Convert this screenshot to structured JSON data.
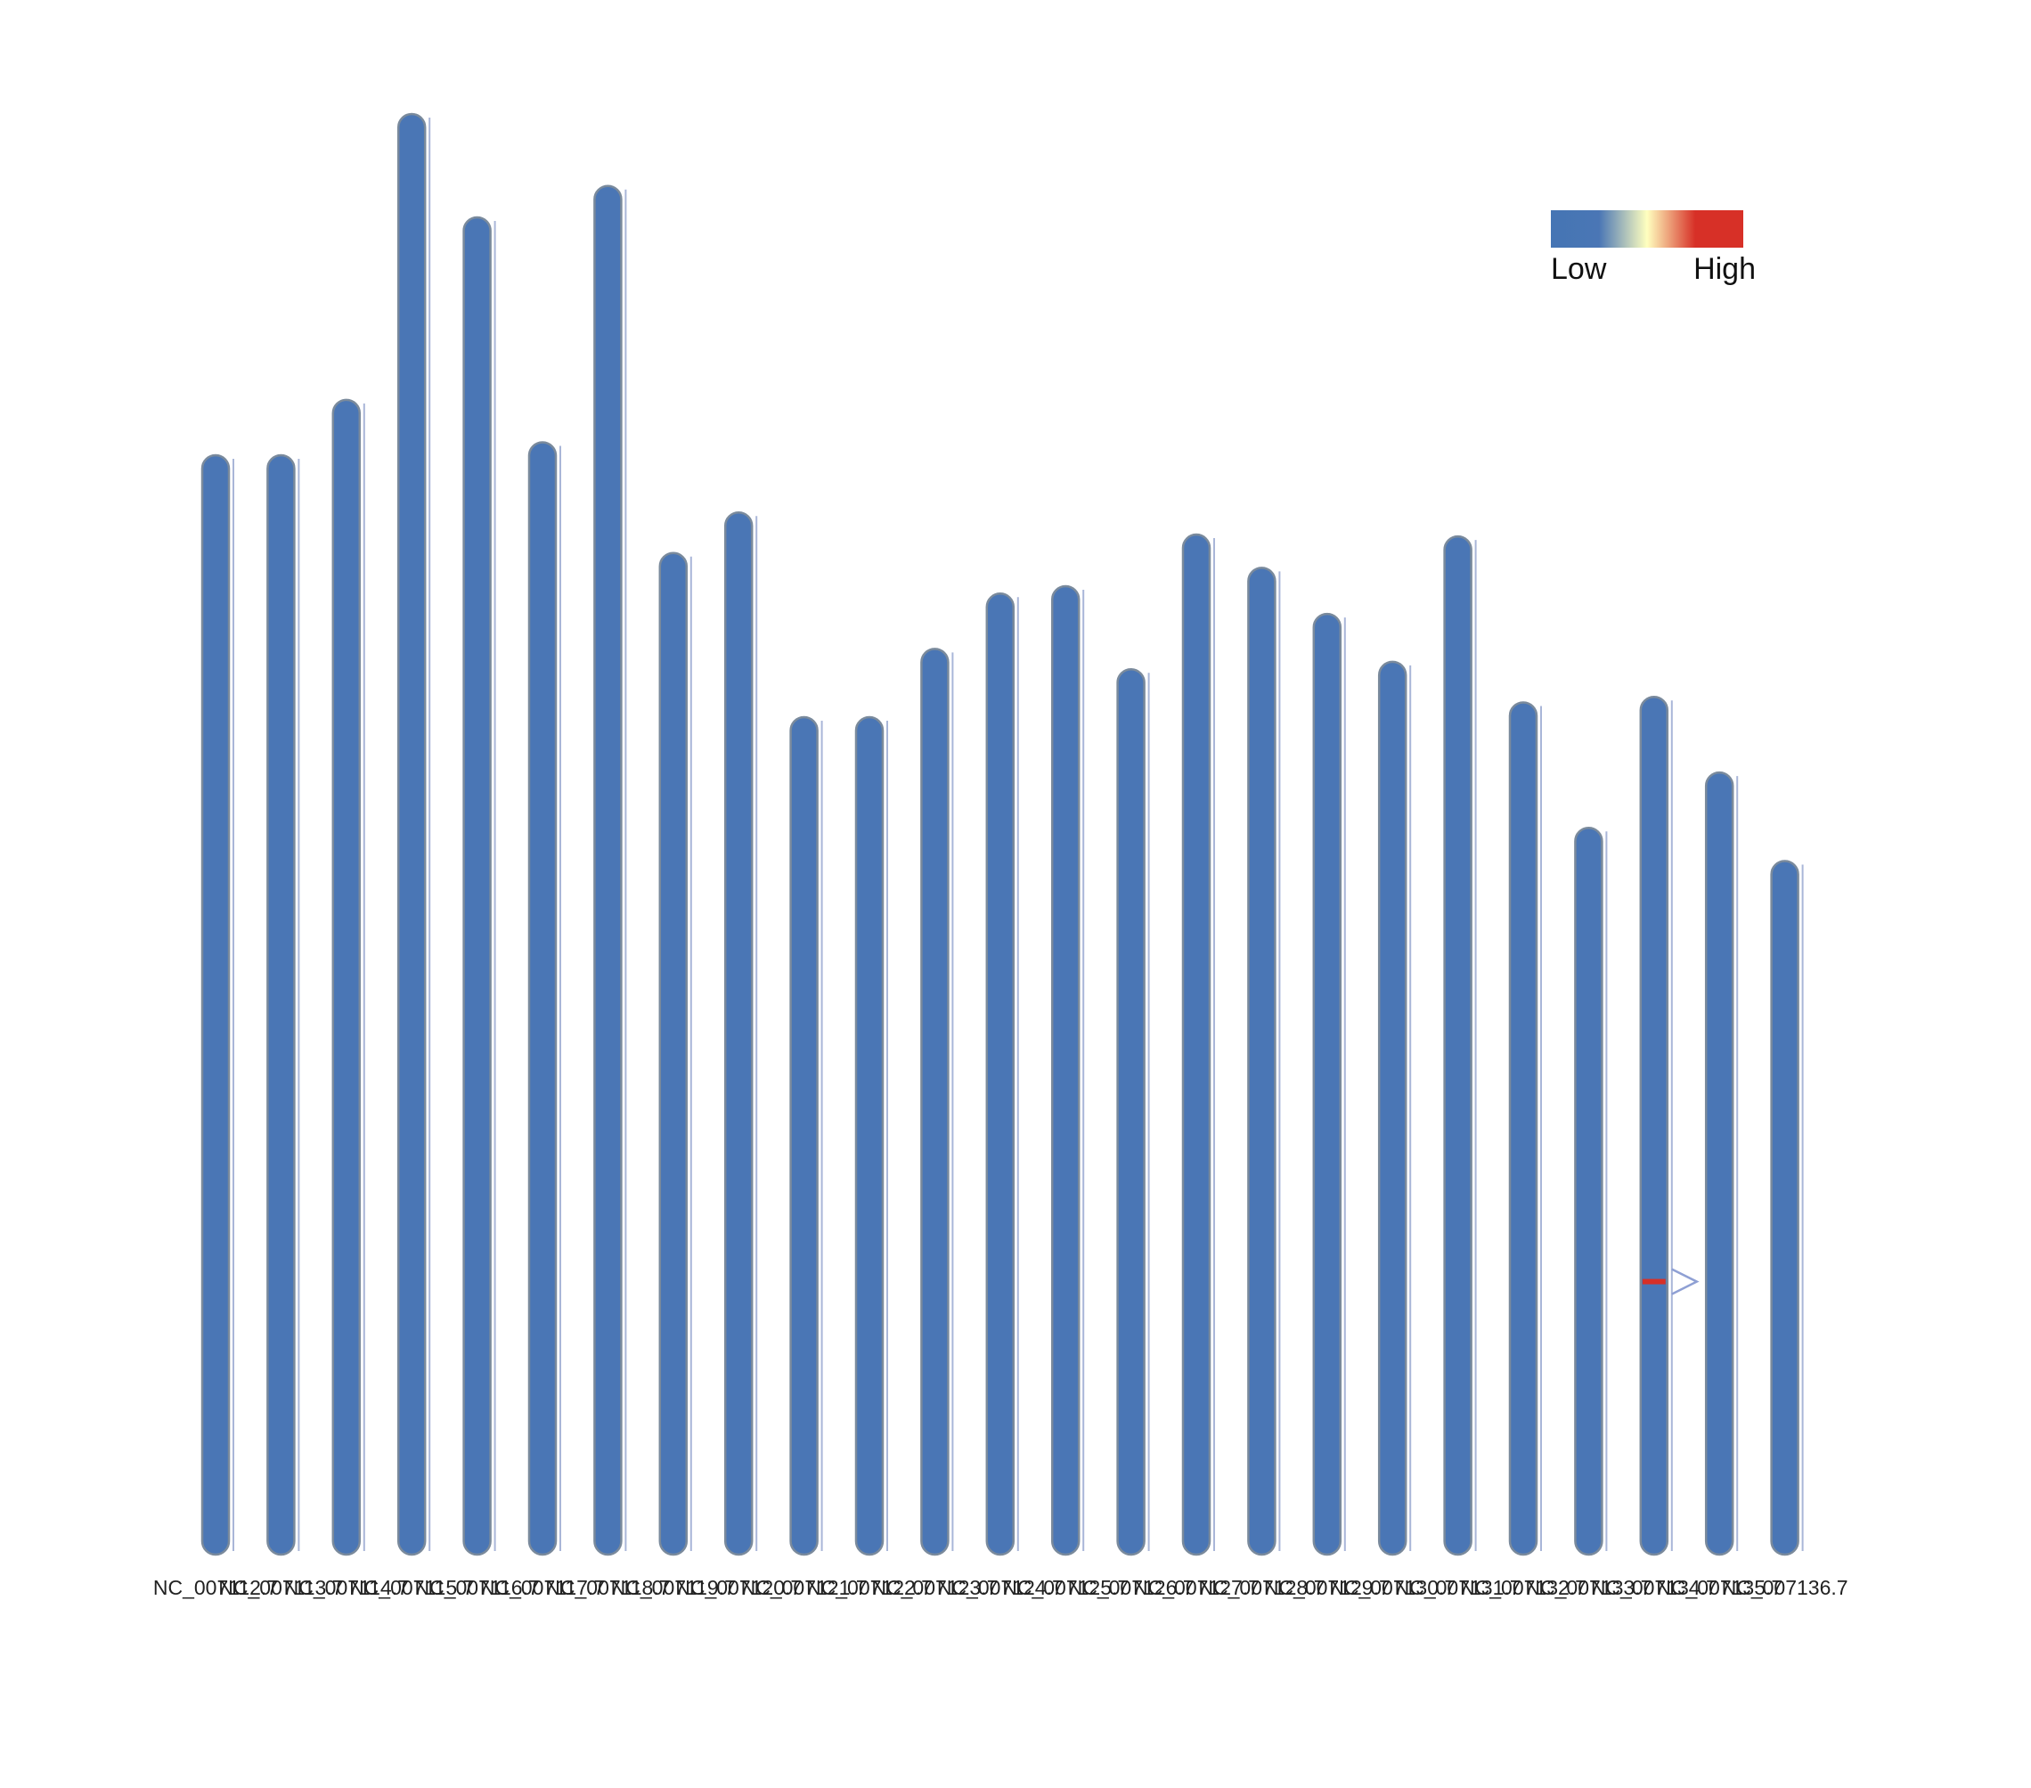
{
  "chart_data": {
    "type": "bar",
    "subtype": "chromosome-ideogram-density",
    "title": "",
    "xlabel": "",
    "ylabel": "",
    "categories": [
      "NC_007112.7",
      "NC_007113.7",
      "NC_007114.7",
      "NC_007115.7",
      "NC_007116.7",
      "NC_007117.7",
      "NC_007118.7",
      "NC_007119.7",
      "NC_007120.7",
      "NC_007121.7",
      "NC_007122.7",
      "NC_007123.7",
      "NC_007124.7",
      "NC_007125.7",
      "NC_007126.7",
      "NC_007127.7",
      "NC_007128.7",
      "NC_007129.7",
      "NC_007130.7",
      "NC_007131.7",
      "NC_007132.7",
      "NC_007133.7",
      "NC_007134.7",
      "NC_007135.7",
      "NC_007136.7"
    ],
    "lengths": [
      59.6,
      59.6,
      62.6,
      78.1,
      72.5,
      60.3,
      74.2,
      54.3,
      56.5,
      45.4,
      45.4,
      49.1,
      52.1,
      52.5,
      48.0,
      55.3,
      53.5,
      51.0,
      48.4,
      55.2,
      46.2,
      39.4,
      46.5,
      42.4,
      37.6
    ],
    "ylim": [
      0,
      80
    ],
    "density_color_scale": {
      "low_label": "Low",
      "high_label": "High",
      "colors": [
        "#4575b4",
        "#ffffbf",
        "#d73027"
      ]
    },
    "highlights": [
      {
        "chromosome": "NC_007134.7",
        "position": 14.8,
        "density": "High",
        "marker_color": "#d73027"
      }
    ],
    "legend_position": "top-right",
    "grid": false,
    "colors": {
      "chromosome_fill": "#4a76b5",
      "chromosome_outline": "#7a8a9c",
      "side_track": "#a9b6d8",
      "marker_outline": "#8fa0d4"
    }
  }
}
